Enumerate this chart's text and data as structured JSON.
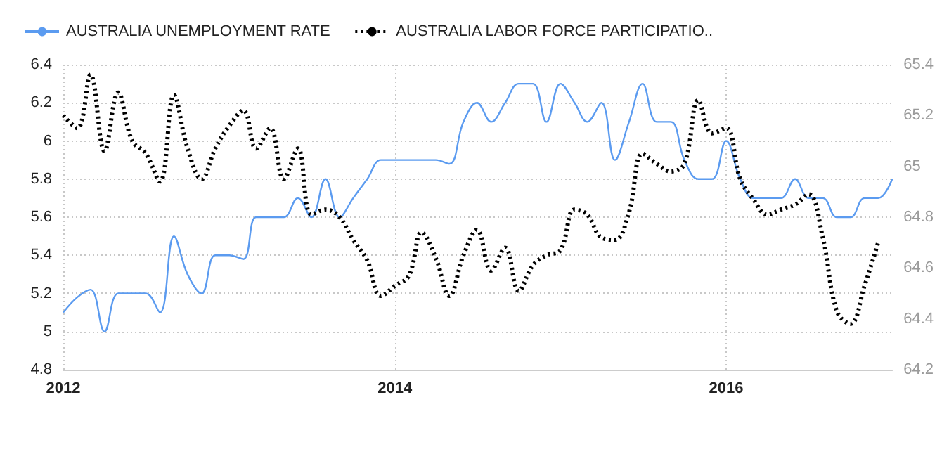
{
  "chart_data": {
    "type": "line",
    "x": [
      "2012-01",
      "2012-02",
      "2012-03",
      "2012-04",
      "2012-05",
      "2012-06",
      "2012-07",
      "2012-08",
      "2012-09",
      "2012-10",
      "2012-11",
      "2012-12",
      "2013-01",
      "2013-02",
      "2013-03",
      "2013-04",
      "2013-05",
      "2013-06",
      "2013-07",
      "2013-08",
      "2013-09",
      "2013-10",
      "2013-11",
      "2013-12",
      "2014-01",
      "2014-02",
      "2014-03",
      "2014-04",
      "2014-05",
      "2014-06",
      "2014-07",
      "2014-08",
      "2014-09",
      "2014-10",
      "2014-11",
      "2014-12",
      "2015-01",
      "2015-02",
      "2015-03",
      "2015-04",
      "2015-05",
      "2015-06",
      "2015-07",
      "2015-08",
      "2015-09",
      "2015-10",
      "2015-11",
      "2015-12",
      "2016-01",
      "2016-02",
      "2016-03",
      "2016-04",
      "2016-05",
      "2016-06",
      "2016-07",
      "2016-08",
      "2016-09",
      "2016-10",
      "2016-11",
      "2016-12",
      "2017-01"
    ],
    "series": [
      {
        "name": "AUSTRALIA UNEMPLOYMENT RATE",
        "color": "#5b9bf0",
        "line_style": "solid",
        "values": [
          5.1,
          5.18,
          5.22,
          5.0,
          5.2,
          5.2,
          5.2,
          5.1,
          5.5,
          5.3,
          5.2,
          5.4,
          5.4,
          5.38,
          5.6,
          5.6,
          5.6,
          5.7,
          5.6,
          5.8,
          5.6,
          5.7,
          5.8,
          5.9,
          5.9,
          5.9,
          5.9,
          5.9,
          5.88,
          6.1,
          6.2,
          6.1,
          6.2,
          6.3,
          6.3,
          6.1,
          6.3,
          6.2,
          6.1,
          6.2,
          5.9,
          6.1,
          6.3,
          6.1,
          6.1,
          5.9,
          5.8,
          5.8,
          6.0,
          5.8,
          5.7,
          5.7,
          5.7,
          5.8,
          5.7,
          5.7,
          5.6,
          5.6,
          5.7,
          5.7,
          5.8
        ]
      },
      {
        "name": "AUSTRALIA LABOR FORCE PARTICIPATIO..",
        "color": "#000000",
        "line_style": "dotted",
        "axis": "y2",
        "values": [
          65.2,
          65.15,
          65.36,
          65.06,
          65.29,
          65.1,
          65.05,
          64.94,
          65.28,
          65.07,
          64.95,
          65.07,
          65.16,
          65.22,
          65.07,
          65.15,
          64.95,
          65.07,
          64.81,
          64.83,
          64.8,
          64.71,
          64.63,
          64.49,
          64.53,
          64.57,
          64.74,
          64.64,
          64.49,
          64.65,
          64.75,
          64.59,
          64.68,
          64.51,
          64.61,
          64.65,
          64.67,
          64.83,
          64.81,
          64.72,
          64.71,
          64.82,
          65.05,
          65.01,
          64.98,
          65.01,
          65.26,
          65.13,
          65.15,
          64.95,
          64.87,
          64.81,
          64.83,
          64.85,
          64.89,
          64.72,
          64.43,
          64.38,
          64.53,
          64.7,
          null
        ]
      }
    ],
    "xlim": [
      "2012-01",
      "2017-01"
    ],
    "xticks": [
      "2012",
      "2014",
      "2016"
    ],
    "ylim": [
      4.8,
      6.4
    ],
    "yticks": [
      4.8,
      5,
      5.2,
      5.4,
      5.6,
      5.8,
      6,
      6.2,
      6.4
    ],
    "y2lim": [
      64.2,
      65.4
    ],
    "y2ticks": [
      64.2,
      64.4,
      64.6,
      64.8,
      65,
      65.2,
      65.4
    ],
    "grid": true,
    "legend": "top left",
    "marker": "none"
  }
}
